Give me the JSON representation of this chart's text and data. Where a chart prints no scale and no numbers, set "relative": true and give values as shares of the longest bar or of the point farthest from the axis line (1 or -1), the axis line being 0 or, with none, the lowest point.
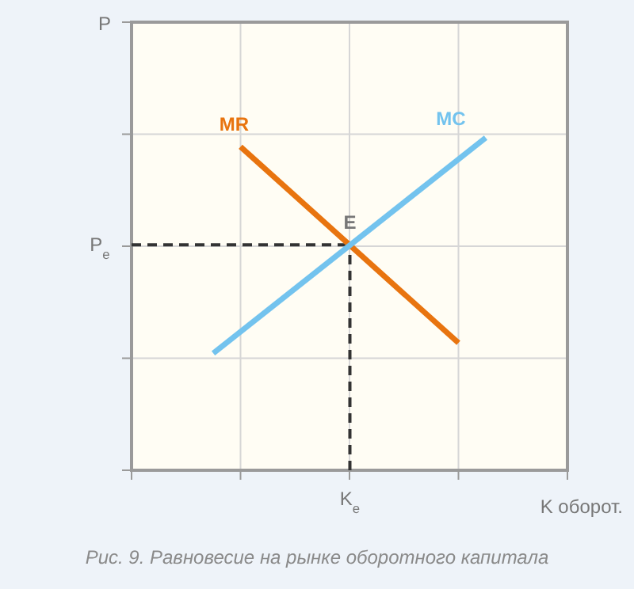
{
  "chart_data": {
    "type": "line",
    "relative": true,
    "xlabel": "K оборот.",
    "grid": true,
    "marker": "none",
    "categories": [
      null,
      null,
      null,
      null,
      null,
      null,
      null,
      null,
      null,
      null,
      null,
      null,
      null,
      null,
      null,
      null,
      null
    ],
    "series": [
      {
        "name": "MR",
        "color": "#e8740f",
        "values": [
          null,
          null,
          null,
          null,
          0.973,
          null,
          null,
          null,
          null,
          null,
          null,
          null,
          0.383,
          null,
          null,
          null,
          null
        ]
      },
      {
        "name": "MC",
        "color": "#73c3ee",
        "values": [
          null,
          null,
          null,
          0.352,
          null,
          null,
          null,
          null,
          null,
          null,
          null,
          null,
          null,
          1.0,
          null,
          null,
          null
        ]
      }
    ],
    "ref_lines": [
      {
        "axis": "y",
        "value": 0.678,
        "label": "P$_{e}$",
        "color": "#333333",
        "line_style": "dashed"
      }
    ],
    "annotations": [
      {
        "text": "E",
        "y": 0.678
      },
      "P",
      "K$_{e}$",
      "Рис. 9. Равновесие на рынке оборотного капитала"
    ]
  }
}
